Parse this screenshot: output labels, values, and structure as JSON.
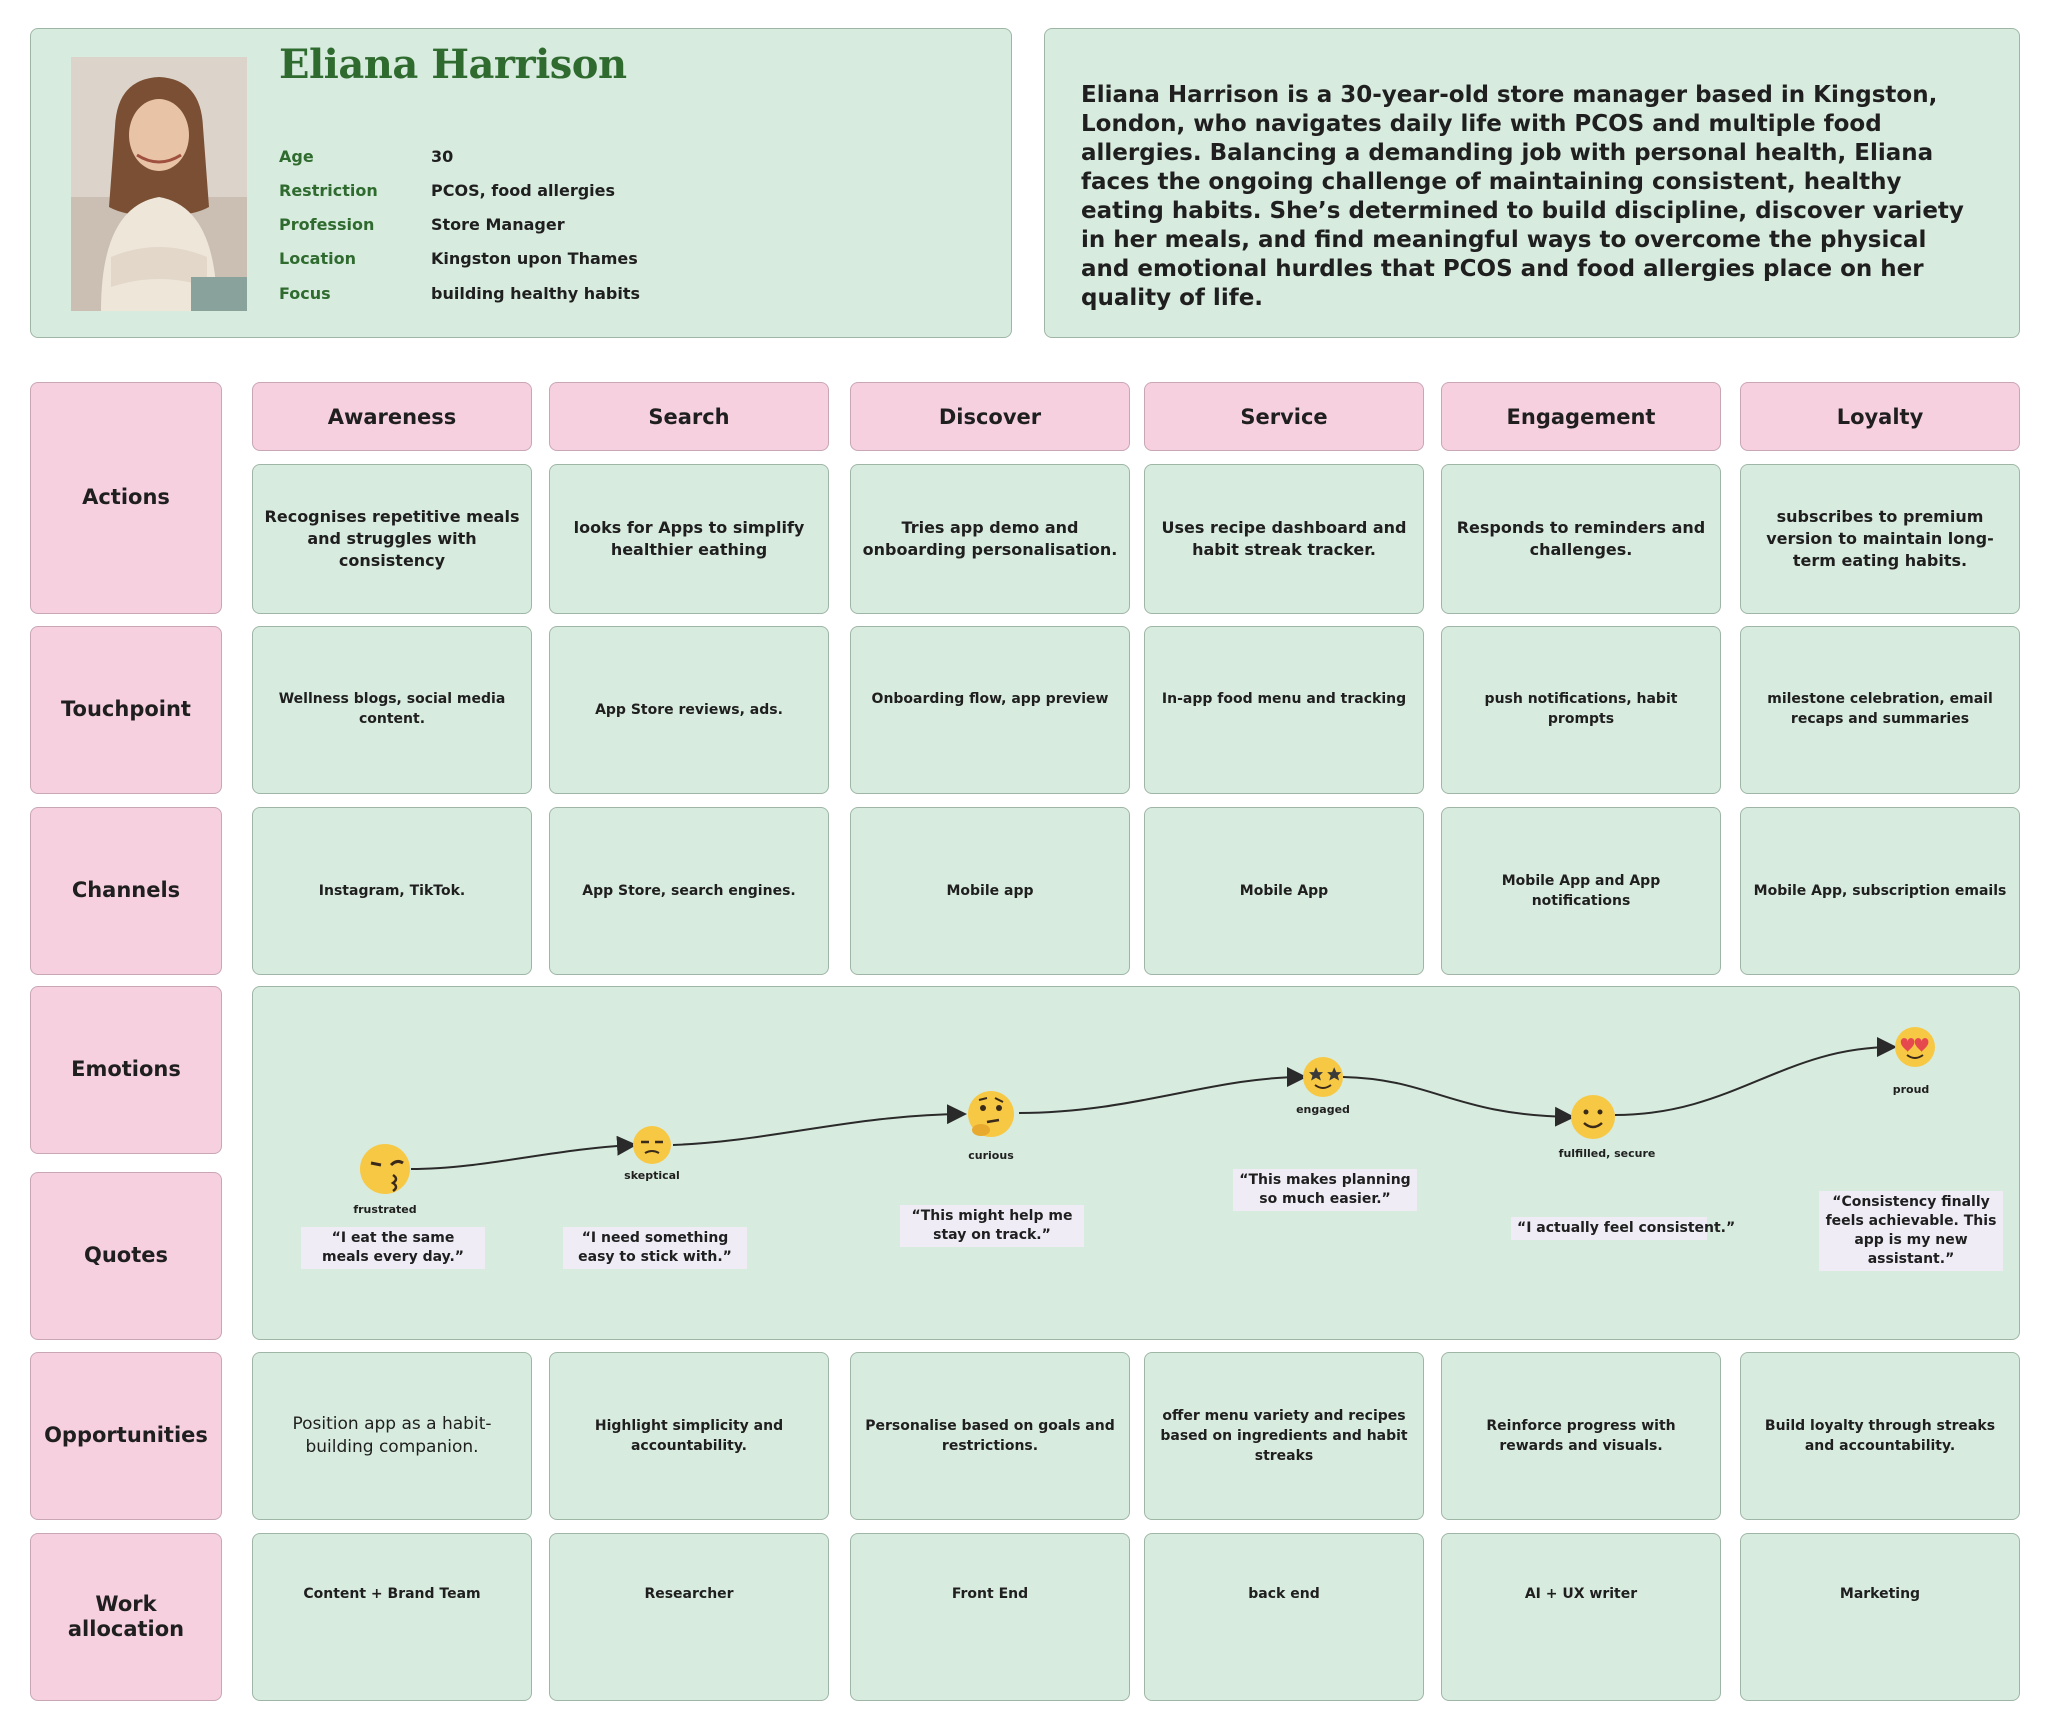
{
  "persona": {
    "name": "Eliana Harrison",
    "fields": [
      {
        "label": "Age",
        "value": "30"
      },
      {
        "label": "Restriction",
        "value": "PCOS, food allergies"
      },
      {
        "label": "Profession",
        "value": "Store Manager"
      },
      {
        "label": "Location",
        "value": "Kingston upon Thames"
      },
      {
        "label": "Focus",
        "value": "building healthy habits"
      }
    ],
    "summary": "Eliana Harrison is a 30-year-old store manager based in Kingston, London, who navigates daily life with PCOS and multiple food allergies. Balancing a demanding job with personal health, Eliana faces the ongoing challenge of maintaining consistent, healthy eating habits. She’s determined to build discipline, discover variety in her meals, and find meaningful ways to overcome the physical and emotional hurdles that PCOS and food allergies place on her quality of life."
  },
  "rows": [
    "Actions",
    "Touchpoint",
    "Channels",
    "Emotions",
    "Quotes",
    "Opportunities",
    "Work allocation"
  ],
  "stages": [
    "Awareness",
    "Search",
    "Discover",
    "Service",
    "Engagement",
    "Loyalty"
  ],
  "actions": [
    "Recognises repetitive meals and struggles with consistency",
    "looks for Apps to simplify healthier eathing",
    "Tries app demo and onboarding personalisation.",
    "Uses recipe dashboard and habit streak tracker.",
    "Responds to reminders and challenges.",
    "subscribes to premium version to maintain long-term eating habits."
  ],
  "touchpoints": [
    "Wellness blogs, social media content.",
    "App Store reviews,  ads.",
    "Onboarding flow, app preview",
    "In-app food menu and tracking",
    "push notifications, habit prompts",
    "milestone celebration, email recaps and summaries"
  ],
  "channels": [
    "Instagram, TikTok.",
    "App Store, search engines.",
    "Mobile app",
    "Mobile App",
    "Mobile App and App notifications",
    "Mobile App, subscription emails"
  ],
  "emotions": [
    {
      "label": "frustrated",
      "icon": "kissing-face-emoji-icon",
      "quote": "“I eat the same meals every day.”"
    },
    {
      "label": "skeptical",
      "icon": "unamused-face-emoji-icon",
      "quote": "“I need something easy to stick with.”"
    },
    {
      "label": "curious",
      "icon": "thinking-face-emoji-icon",
      "quote": "“This might help me stay on track.”"
    },
    {
      "label": "engaged",
      "icon": "star-struck-emoji-icon",
      "quote": "“This makes planning  so much easier.”"
    },
    {
      "label": "fulfilled, secure",
      "icon": "smiling-face-emoji-icon",
      "quote": "“I actually feel consistent.”"
    },
    {
      "label": "proud",
      "icon": "heart-eyes-emoji-icon",
      "quote": "“Consistency finally feels achievable. This app is my new assistant.”"
    }
  ],
  "opportunities": [
    "Position app as a habit-building companion.",
    "Highlight simplicity and accountability.",
    "Personalise based on goals and restrictions.",
    "offer menu variety and recipes based on ingredients and habit streaks",
    "Reinforce progress with rewards and visuals.",
    "Build loyalty through streaks and accountability."
  ],
  "work_allocation": [
    "Content + Brand Team",
    "Researcher",
    "Front End",
    "back end",
    "AI + UX writer",
    "Marketing"
  ],
  "colors": {
    "card_green": "#d8ebdf",
    "label_pink": "#f7d0e0",
    "name_green": "#2f6b2f",
    "quote_bg": "#efecf6",
    "emoji_yellow": "#f7c844"
  }
}
